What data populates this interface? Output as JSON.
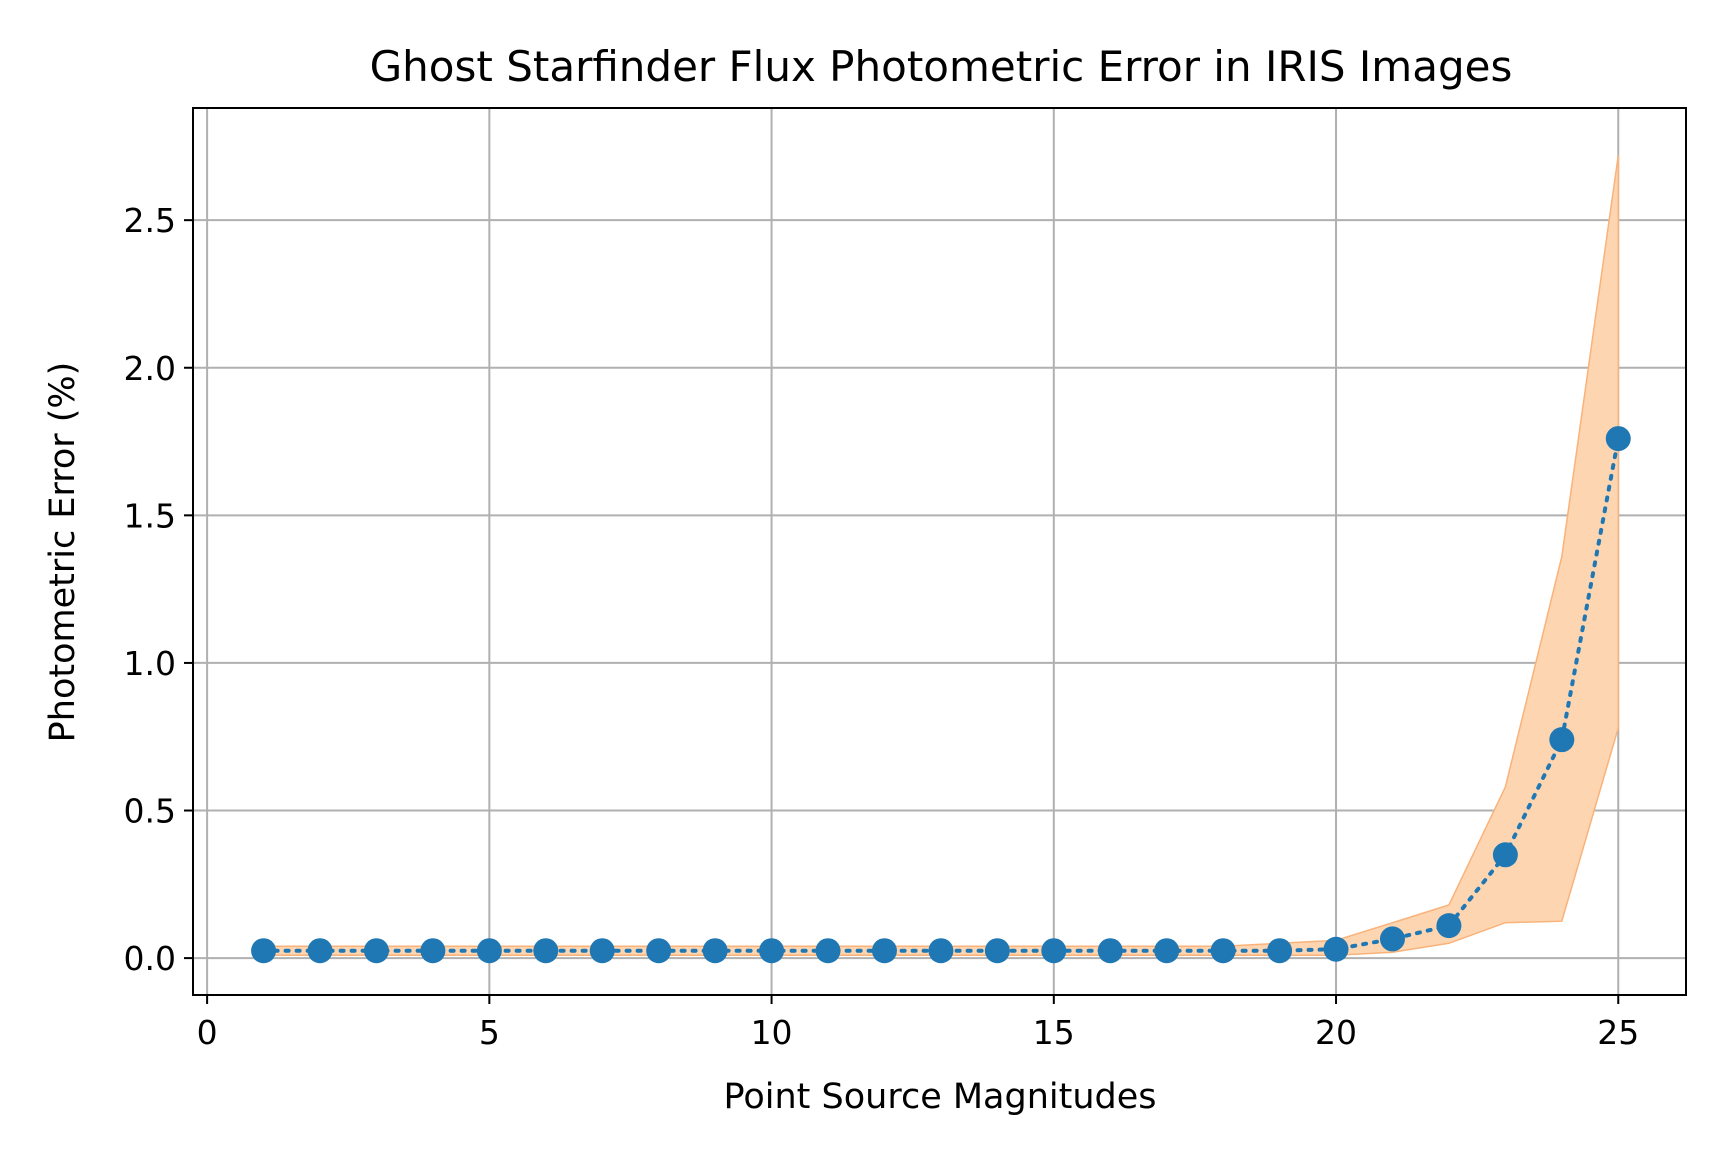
{
  "chart_data": {
    "type": "line",
    "title": "Ghost Starfinder Flux Photometric Error in IRIS Images",
    "xlabel": "Point Source Magnitudes",
    "ylabel": "Photometric Error (%)",
    "xlim": [
      -0.25,
      26.2
    ],
    "ylim": [
      -0.125,
      2.88
    ],
    "xticks": [
      0,
      5,
      10,
      15,
      20,
      25
    ],
    "xtick_labels": [
      "0",
      "5",
      "10",
      "15",
      "20",
      "25"
    ],
    "yticks": [
      0.0,
      0.5,
      1.0,
      1.5,
      2.0,
      2.5
    ],
    "ytick_labels": [
      "0.0",
      "0.5",
      "1.0",
      "1.5",
      "2.0",
      "2.5"
    ],
    "grid": true,
    "series": [
      {
        "x": [
          1,
          2,
          3,
          4,
          5,
          6,
          7,
          8,
          9,
          10,
          11,
          12,
          13,
          14,
          15,
          16,
          17,
          18,
          19,
          20,
          21,
          22,
          23,
          24,
          25
        ],
        "values": [
          0.025,
          0.025,
          0.025,
          0.025,
          0.025,
          0.025,
          0.025,
          0.025,
          0.025,
          0.025,
          0.025,
          0.025,
          0.025,
          0.025,
          0.025,
          0.025,
          0.025,
          0.025,
          0.025,
          0.03,
          0.065,
          0.11,
          0.35,
          0.74,
          1.76
        ],
        "lower": [
          0.01,
          0.01,
          0.01,
          0.01,
          0.01,
          0.01,
          0.01,
          0.01,
          0.01,
          0.01,
          0.01,
          0.01,
          0.01,
          0.01,
          0.01,
          0.01,
          0.01,
          0.01,
          0.01,
          0.01,
          0.02,
          0.05,
          0.12,
          0.125,
          0.78
        ],
        "upper": [
          0.04,
          0.04,
          0.04,
          0.04,
          0.04,
          0.04,
          0.04,
          0.04,
          0.04,
          0.04,
          0.04,
          0.04,
          0.04,
          0.04,
          0.04,
          0.04,
          0.04,
          0.04,
          0.05,
          0.06,
          0.12,
          0.18,
          0.58,
          1.36,
          2.72
        ],
        "color": "#1f77b4",
        "band_color": "#fdd6b1",
        "band_edge_color": "#f9b27a",
        "line_style": "dotted",
        "marker": "circle"
      }
    ]
  }
}
